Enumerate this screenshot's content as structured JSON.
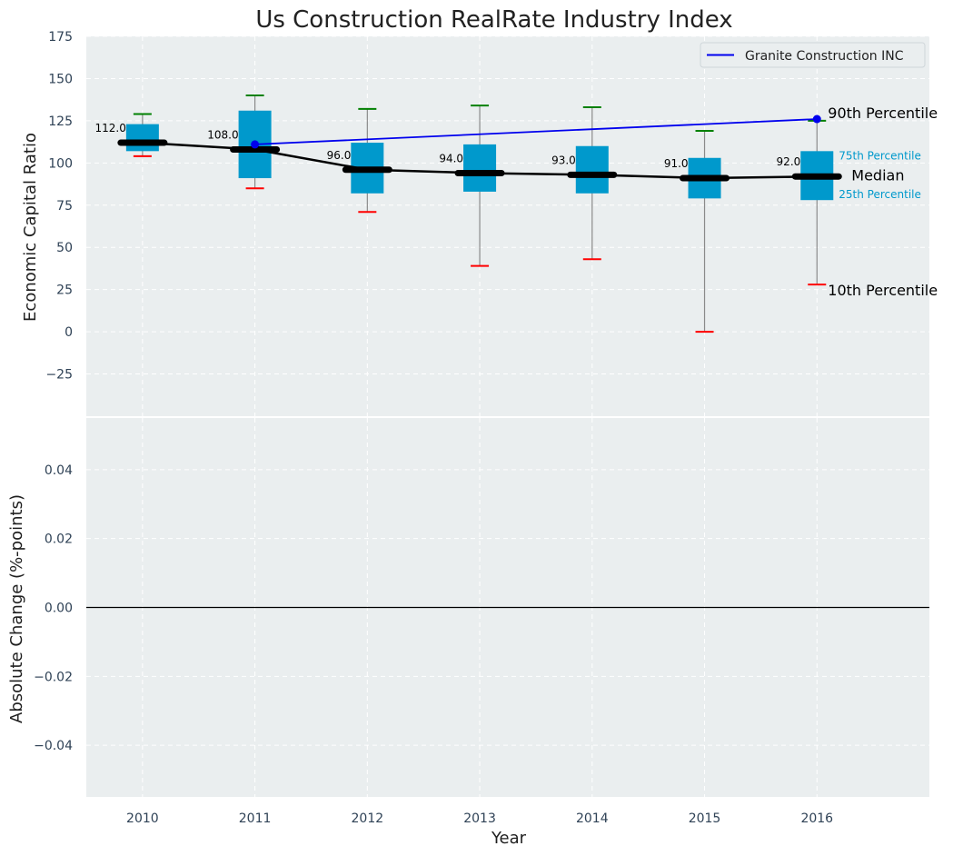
{
  "chart_data": [
    {
      "type": "box",
      "title": "Us Construction RealRate Industry Index",
      "ylabel": "Economic Capital Ratio",
      "ylim": [
        -50,
        175
      ],
      "yticks": [
        -25,
        0,
        25,
        50,
        75,
        100,
        125,
        150,
        175
      ],
      "x": [
        2010,
        2011,
        2012,
        2013,
        2014,
        2015,
        2016
      ],
      "grid": true,
      "series": [
        {
          "kind": "percentile-box",
          "p10": [
            104,
            85,
            71,
            39,
            43,
            0,
            28
          ],
          "p25": [
            107,
            91,
            82,
            83,
            82,
            79,
            78
          ],
          "median": [
            112,
            108,
            96,
            94,
            93,
            91,
            92
          ],
          "p75": [
            123,
            131,
            112,
            111,
            110,
            103,
            107
          ],
          "p90": [
            129,
            140,
            132,
            134,
            133,
            119,
            125
          ]
        },
        {
          "kind": "line",
          "name": "Granite Construction INC",
          "x": [
            2011,
            2016
          ],
          "values": [
            111,
            126
          ]
        }
      ],
      "median_labels": [
        "112.0",
        "108.0",
        "96.0",
        "94.0",
        "93.0",
        "91.0",
        "92.0"
      ],
      "annotations": {
        "p90": "90th Percentile",
        "p75": "75th Percentile",
        "median": "Median",
        "p25": "25th Percentile",
        "p10": "10th Percentile"
      },
      "legend": {
        "placement": "top-right",
        "entry": "Granite Construction INC"
      },
      "colors": {
        "box": "#0099cc",
        "median": "#000000",
        "p90_cap": "#008000",
        "p10_cap": "#ff0000",
        "company": "#0000ee",
        "background": "#eaeeef"
      }
    },
    {
      "type": "line",
      "xlabel": "Year",
      "ylabel": "Absolute Change (%-points)",
      "ylim": [
        -0.055,
        0.055
      ],
      "yticks": [
        -0.04,
        -0.02,
        0.0,
        0.02,
        0.04
      ],
      "ytick_labels": [
        "−0.04",
        "−0.02",
        "0.00",
        "0.02",
        "0.04"
      ],
      "x": [
        2010,
        2011,
        2012,
        2013,
        2014,
        2015,
        2016
      ],
      "grid": true,
      "zero_line": true
    }
  ]
}
